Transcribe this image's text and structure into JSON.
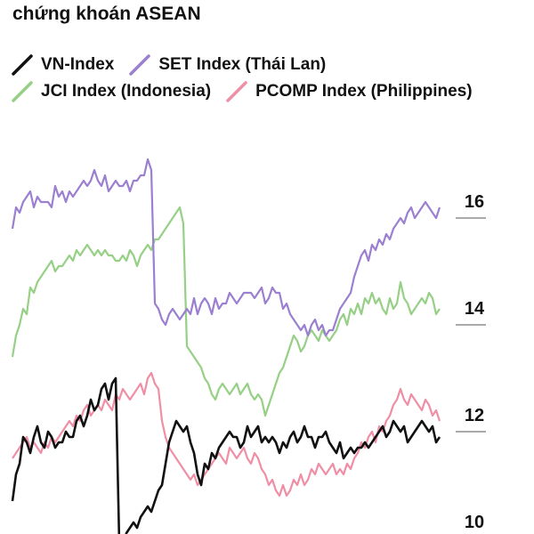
{
  "title": "chứng khoán ASEAN",
  "chart_data": {
    "type": "line",
    "y_right_ticks": [
      16,
      14,
      12,
      10
    ],
    "grid": false,
    "legend_position": "top",
    "series": [
      {
        "name": "VN-Index",
        "color": "#111111",
        "values": [
          10.7,
          11.2,
          11.4,
          11.9,
          11.8,
          11.6,
          11.9,
          12.1,
          11.8,
          11.7,
          12.0,
          11.9,
          11.7,
          11.8,
          11.8,
          12.0,
          11.9,
          11.9,
          12.2,
          12.3,
          12.1,
          12.3,
          12.6,
          12.4,
          12.5,
          12.8,
          12.9,
          12.6,
          12.9,
          13.0,
          9.9,
          9.8,
          10.1,
          10.2,
          10.3,
          10.2,
          10.4,
          10.5,
          10.6,
          10.5,
          10.7,
          10.9,
          11.0,
          11.4,
          11.8,
          12.0,
          12.2,
          12.1,
          12.0,
          12.1,
          11.8,
          11.6,
          11.2,
          11.0,
          11.4,
          11.3,
          11.6,
          11.5,
          11.7,
          11.8,
          11.9,
          12.0,
          11.9,
          11.9,
          11.7,
          11.8,
          12.1,
          11.9,
          12.0,
          12.1,
          11.8,
          11.9,
          11.8,
          11.9,
          11.8,
          11.6,
          11.8,
          11.7,
          11.9,
          12.0,
          11.8,
          11.9,
          12.1,
          11.9,
          11.9,
          11.7,
          11.9,
          11.9,
          12.0,
          11.8,
          11.7,
          11.6,
          11.8,
          11.5,
          11.6,
          11.7,
          11.6,
          11.7,
          11.7,
          11.8,
          11.7,
          11.8,
          11.9,
          12.0,
          12.1,
          11.9,
          12.0,
          12.2,
          12.1,
          12.0,
          12.1,
          11.8,
          11.9,
          12.0,
          12.1,
          12.2,
          12.1,
          12.0,
          12.1,
          11.8,
          11.9
        ]
      },
      {
        "name": "SET Index (Thái Lan)",
        "color": "#9b7fd0",
        "values": [
          15.8,
          16.2,
          16.1,
          16.3,
          16.4,
          16.5,
          16.2,
          16.4,
          16.3,
          16.3,
          16.3,
          16.2,
          16.6,
          16.4,
          16.5,
          16.3,
          16.5,
          16.4,
          16.5,
          16.6,
          16.7,
          16.6,
          16.7,
          16.9,
          16.7,
          16.6,
          16.8,
          16.5,
          16.6,
          16.7,
          16.6,
          16.6,
          16.7,
          16.5,
          16.7,
          16.7,
          16.8,
          16.8,
          17.1,
          16.9,
          14.4,
          14.3,
          14.1,
          14.0,
          14.2,
          14.3,
          14.2,
          14.1,
          14.2,
          14.3,
          14.2,
          14.5,
          14.2,
          14.4,
          14.5,
          14.4,
          14.2,
          14.5,
          14.3,
          14.4,
          14.4,
          14.6,
          14.5,
          14.4,
          14.5,
          14.6,
          14.6,
          14.6,
          14.5,
          14.6,
          14.7,
          14.4,
          14.5,
          14.7,
          14.6,
          14.6,
          14.3,
          14.4,
          14.2,
          14.1,
          14.0,
          13.9,
          14.0,
          13.8,
          14.0,
          14.1,
          13.9,
          14.0,
          13.8,
          13.9,
          13.9,
          14.1,
          14.3,
          14.4,
          14.5,
          14.6,
          14.9,
          15.1,
          15.3,
          15.4,
          15.2,
          15.5,
          15.4,
          15.6,
          15.5,
          15.7,
          15.6,
          15.8,
          15.9,
          16.0,
          15.9,
          16.1,
          16.2,
          16.0,
          16.1,
          16.2,
          16.3,
          16.2,
          16.1,
          16.0,
          16.2
        ]
      },
      {
        "name": "JCI Index (Indonesia)",
        "color": "#96cf86",
        "values": [
          13.4,
          13.8,
          14.0,
          14.3,
          14.2,
          14.7,
          14.6,
          14.8,
          14.9,
          15.0,
          15.1,
          15.2,
          15.0,
          15.1,
          15.1,
          15.2,
          15.3,
          15.2,
          15.4,
          15.3,
          15.4,
          15.5,
          15.4,
          15.3,
          15.4,
          15.3,
          15.4,
          15.3,
          15.3,
          15.2,
          15.2,
          15.3,
          15.2,
          15.4,
          15.3,
          15.1,
          15.3,
          15.4,
          15.5,
          15.4,
          15.6,
          15.6,
          15.7,
          15.8,
          15.9,
          16.0,
          16.1,
          16.2,
          15.9,
          13.6,
          13.5,
          13.4,
          13.3,
          13.2,
          13.0,
          12.9,
          12.7,
          12.6,
          12.8,
          12.9,
          12.8,
          12.7,
          12.8,
          12.9,
          12.7,
          12.8,
          12.9,
          12.7,
          12.6,
          12.7,
          12.6,
          12.3,
          12.5,
          12.7,
          12.9,
          13.1,
          13.2,
          13.4,
          13.6,
          13.8,
          13.7,
          13.5,
          13.6,
          13.8,
          13.9,
          13.8,
          13.7,
          13.9,
          13.8,
          13.7,
          13.8,
          13.9,
          14.1,
          14.2,
          14.0,
          14.3,
          14.2,
          14.4,
          14.2,
          14.5,
          14.4,
          14.6,
          14.4,
          14.5,
          14.3,
          14.2,
          14.5,
          14.3,
          14.4,
          14.8,
          14.5,
          14.4,
          14.2,
          14.3,
          14.4,
          14.5,
          14.4,
          14.6,
          14.5,
          14.2,
          14.3
        ]
      },
      {
        "name": "PCOMP Index (Philippines)",
        "color": "#ef8fa6",
        "values": [
          11.5,
          11.6,
          11.7,
          11.8,
          11.9,
          11.7,
          11.8,
          11.7,
          11.6,
          11.8,
          11.7,
          11.9,
          11.8,
          11.9,
          12.0,
          12.1,
          12.2,
          12.1,
          12.3,
          12.2,
          12.4,
          12.5,
          12.3,
          12.4,
          12.5,
          12.4,
          12.6,
          12.5,
          12.4,
          12.7,
          12.6,
          12.8,
          12.7,
          12.6,
          12.7,
          12.8,
          12.9,
          12.7,
          13.0,
          13.1,
          12.9,
          12.8,
          12.2,
          11.9,
          11.7,
          11.6,
          11.5,
          11.4,
          11.3,
          11.2,
          11.1,
          11.2,
          11.0,
          11.1,
          11.2,
          11.3,
          11.4,
          11.5,
          11.6,
          11.5,
          11.4,
          11.7,
          11.6,
          11.5,
          11.6,
          11.7,
          11.5,
          11.4,
          11.6,
          11.5,
          11.3,
          11.2,
          11.0,
          11.1,
          10.9,
          10.8,
          11.0,
          10.8,
          10.9,
          11.1,
          11.0,
          11.2,
          11.0,
          11.1,
          11.3,
          11.2,
          11.4,
          11.3,
          11.2,
          11.3,
          11.4,
          11.2,
          11.3,
          11.2,
          11.4,
          11.3,
          11.5,
          11.6,
          11.8,
          11.7,
          11.9,
          12.0,
          11.8,
          12.1,
          12.0,
          12.2,
          12.3,
          12.5,
          12.6,
          12.8,
          12.6,
          12.5,
          12.7,
          12.6,
          12.5,
          12.4,
          12.6,
          12.5,
          12.3,
          12.4,
          12.2
        ]
      }
    ]
  }
}
